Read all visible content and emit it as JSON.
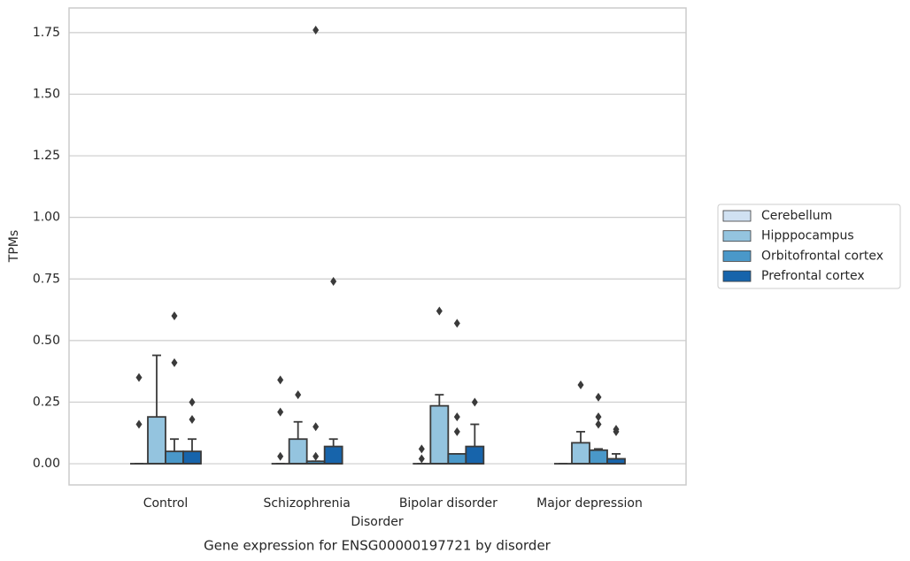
{
  "chart_data": {
    "type": "box",
    "title": "Gene expression for ENSG00000197721 by disorder",
    "xlabel": "Disorder",
    "ylabel": "TPMs",
    "categories": [
      "Control",
      "Schizophrenia",
      "Bipolar disorder",
      "Major depression"
    ],
    "ylim": [
      -0.086,
      1.85
    ],
    "yticks": [
      {
        "value": 0,
        "label": "0.00"
      },
      {
        "value": 0.25,
        "label": "0.25"
      },
      {
        "value": 0.5,
        "label": "0.50"
      },
      {
        "value": 0.75,
        "label": "0.75"
      },
      {
        "value": 1,
        "label": "1.00"
      },
      {
        "value": 1.25,
        "label": "1.25"
      },
      {
        "value": 1.5,
        "label": "1.50"
      },
      {
        "value": 1.75,
        "label": "1.75"
      }
    ],
    "grid": true,
    "legend": "right",
    "series": [
      {
        "name": "Cerebellum",
        "color": "#d0e1f2",
        "boxes": [
          {
            "low": 0,
            "q1": 0,
            "median": 0,
            "q3": 0,
            "high": 0,
            "outliers": [
              0.35,
              0.16
            ]
          },
          {
            "low": 0,
            "q1": 0,
            "median": 0,
            "q3": 0,
            "high": 0,
            "outliers": [
              0.34,
              0.21,
              0.03
            ]
          },
          {
            "low": 0,
            "q1": 0,
            "median": 0,
            "q3": 0,
            "high": 0,
            "outliers": [
              0.06,
              0.02
            ]
          },
          {
            "low": 0,
            "q1": 0,
            "median": 0,
            "q3": 0,
            "high": 0,
            "outliers": []
          }
        ]
      },
      {
        "name": "Hipppocampus",
        "color": "#94c4df",
        "boxes": [
          {
            "low": 0,
            "q1": 0,
            "median": 0,
            "q3": 0.19,
            "high": 0.44,
            "outliers": []
          },
          {
            "low": 0,
            "q1": 0,
            "median": 0,
            "q3": 0.1,
            "high": 0.17,
            "outliers": [
              0.28
            ]
          },
          {
            "low": 0,
            "q1": 0,
            "median": 0,
            "q3": 0.235,
            "high": 0.28,
            "outliers": [
              0.62
            ]
          },
          {
            "low": 0,
            "q1": 0,
            "median": 0,
            "q3": 0.085,
            "high": 0.13,
            "outliers": [
              0.32
            ]
          }
        ]
      },
      {
        "name": "Orbitofrontal cortex",
        "color": "#4a98c9",
        "boxes": [
          {
            "low": 0,
            "q1": 0,
            "median": 0,
            "q3": 0.05,
            "high": 0.1,
            "outliers": [
              0.6,
              0.41
            ]
          },
          {
            "low": 0,
            "q1": 0,
            "median": 0,
            "q3": 0.01,
            "high": 0.01,
            "outliers": [
              1.76,
              0.15,
              0.03
            ]
          },
          {
            "low": 0,
            "q1": 0,
            "median": 0,
            "q3": 0.04,
            "high": 0.04,
            "outliers": [
              0.57,
              0.19,
              0.13
            ]
          },
          {
            "low": 0,
            "q1": 0,
            "median": 0,
            "q3": 0.055,
            "high": 0.06,
            "outliers": [
              0.27,
              0.19,
              0.16
            ]
          }
        ]
      },
      {
        "name": "Prefrontal cortex",
        "color": "#1764ab",
        "boxes": [
          {
            "low": 0,
            "q1": 0,
            "median": 0,
            "q3": 0.05,
            "high": 0.1,
            "outliers": [
              0.25,
              0.18
            ]
          },
          {
            "low": 0,
            "q1": 0,
            "median": 0,
            "q3": 0.07,
            "high": 0.1,
            "outliers": [
              0.74
            ]
          },
          {
            "low": 0,
            "q1": 0,
            "median": 0,
            "q3": 0.07,
            "high": 0.16,
            "outliers": [
              0.25
            ]
          },
          {
            "low": 0,
            "q1": 0,
            "median": 0,
            "q3": 0.02,
            "high": 0.04,
            "outliers": [
              0.14,
              0.13
            ]
          }
        ]
      }
    ]
  }
}
